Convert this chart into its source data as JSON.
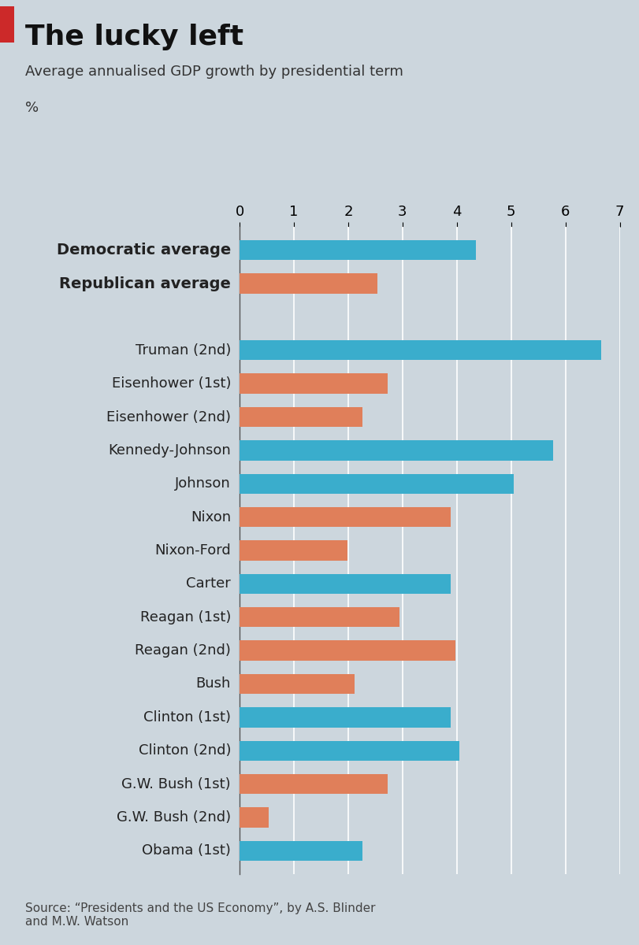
{
  "title": "The lucky left",
  "subtitle": "Average annualised GDP growth by presidential term",
  "ylabel_unit": "%",
  "source": "Source: “Presidents and the US Economy”, by A.S. Blinder\nand M.W. Watson",
  "background_color": "#ccd6dd",
  "dem_color": "#3aadcc",
  "rep_color": "#e07f5a",
  "accent_color": "#cc2929",
  "xlim": [
    0,
    7
  ],
  "xticks": [
    0,
    1,
    2,
    3,
    4,
    5,
    6,
    7
  ],
  "categories": [
    "Democratic average",
    "Republican average",
    "",
    "Truman (2nd)",
    "Eisenhower (1st)",
    "Eisenhower (2nd)",
    "Kennedy-Johnson",
    "Johnson",
    "Nixon",
    "Nixon-Ford",
    "Carter",
    "Reagan (1st)",
    "Reagan (2nd)",
    "Bush",
    "Clinton (1st)",
    "Clinton (2nd)",
    "G.W. Bush (1st)",
    "G.W. Bush (2nd)",
    "Obama (1st)"
  ],
  "values": [
    4.35,
    2.54,
    0,
    6.65,
    2.72,
    2.26,
    5.77,
    5.05,
    3.88,
    1.98,
    3.88,
    2.95,
    3.97,
    2.12,
    3.88,
    4.05,
    2.72,
    0.54,
    2.26
  ],
  "party": [
    "D",
    "R",
    "",
    "D",
    "R",
    "R",
    "D",
    "D",
    "R",
    "R",
    "D",
    "R",
    "R",
    "R",
    "D",
    "D",
    "R",
    "R",
    "D"
  ],
  "bold_rows": [
    0,
    1
  ],
  "grid_color": "#ffffff",
  "spine_color": "#555555",
  "title_fontsize": 26,
  "subtitle_fontsize": 13,
  "label_fontsize": 13,
  "tick_fontsize": 13,
  "source_fontsize": 11
}
